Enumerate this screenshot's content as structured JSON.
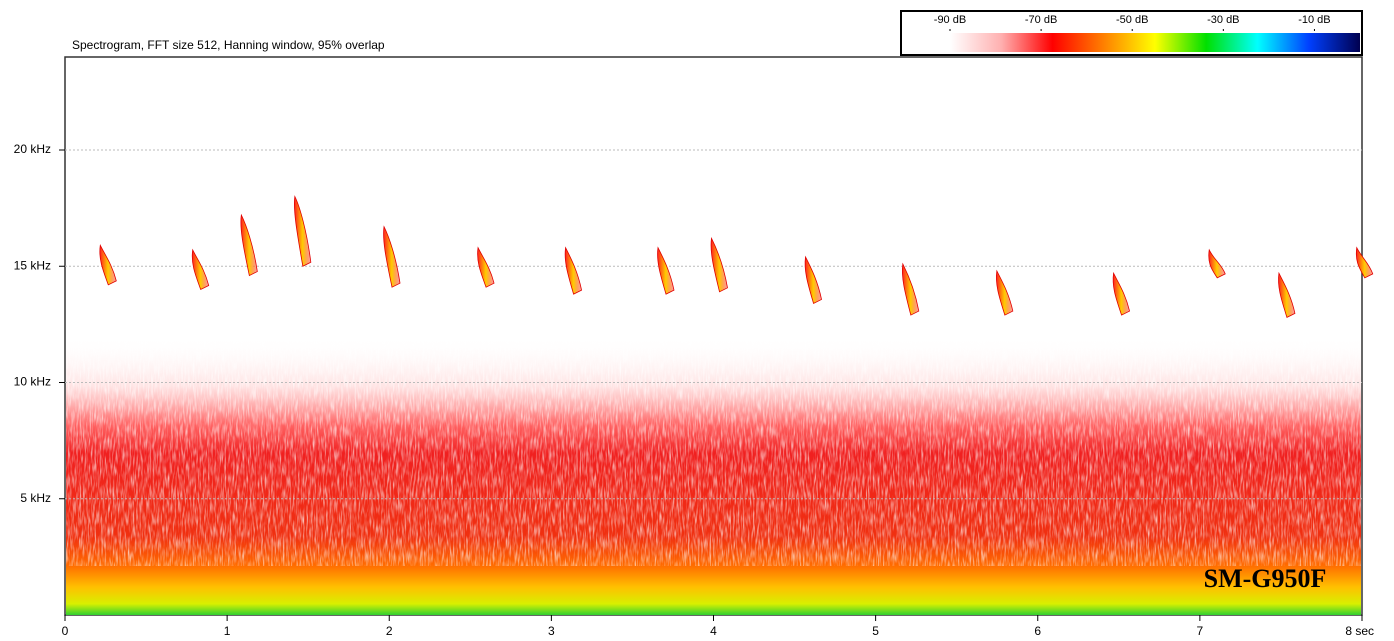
{
  "chart_data": {
    "type": "spectrogram",
    "title": "Spectrogram, FFT size 512, Hanning window, 95% overlap",
    "annotation": "SM-G950F",
    "xlim": [
      0,
      8
    ],
    "xticks": [
      0,
      1,
      2,
      3,
      4,
      5,
      6,
      7,
      {
        "value": 8,
        "label": "8 sec"
      }
    ],
    "ylim": [
      0,
      24
    ],
    "yticks": [
      {
        "value": 5,
        "label": "5 kHz"
      },
      {
        "value": 10,
        "label": "10 kHz"
      },
      {
        "value": 15,
        "label": "15 kHz"
      },
      {
        "value": 20,
        "label": "20 kHz"
      }
    ],
    "grid": true,
    "x": [
      0.23,
      0.8,
      1.1,
      1.43,
      1.98,
      2.56,
      3.1,
      3.67,
      4.0,
      4.58,
      5.18,
      5.76,
      6.48,
      7.07,
      7.5,
      7.98
    ],
    "call_top": [
      15.9,
      15.7,
      17.2,
      18.0,
      16.7,
      15.8,
      15.8,
      15.8,
      16.2,
      15.4,
      15.1,
      14.8,
      14.7,
      15.7,
      14.7,
      15.8
    ],
    "call_bottom": [
      14.2,
      14.0,
      14.6,
      15.0,
      14.1,
      14.1,
      13.8,
      13.8,
      13.9,
      13.4,
      12.9,
      12.9,
      12.9,
      14.5,
      12.8,
      14.5
    ],
    "colorbar_lim": [
      -90,
      0
    ],
    "colorbar_ticks": [
      {
        "value": -90,
        "label": "-90 dB"
      },
      {
        "value": -70,
        "label": "-70 dB"
      },
      {
        "value": -50,
        "label": "-50 dB"
      },
      {
        "value": -30,
        "label": "-30 dB"
      },
      {
        "value": -10,
        "label": "-10 dB"
      }
    ],
    "colormap": [
      "#ffffff",
      "#ffb0b0",
      "#ff0000",
      "#ff8000",
      "#ffff00",
      "#00e000",
      "#00ffff",
      "#0040ff",
      "#000050"
    ]
  }
}
